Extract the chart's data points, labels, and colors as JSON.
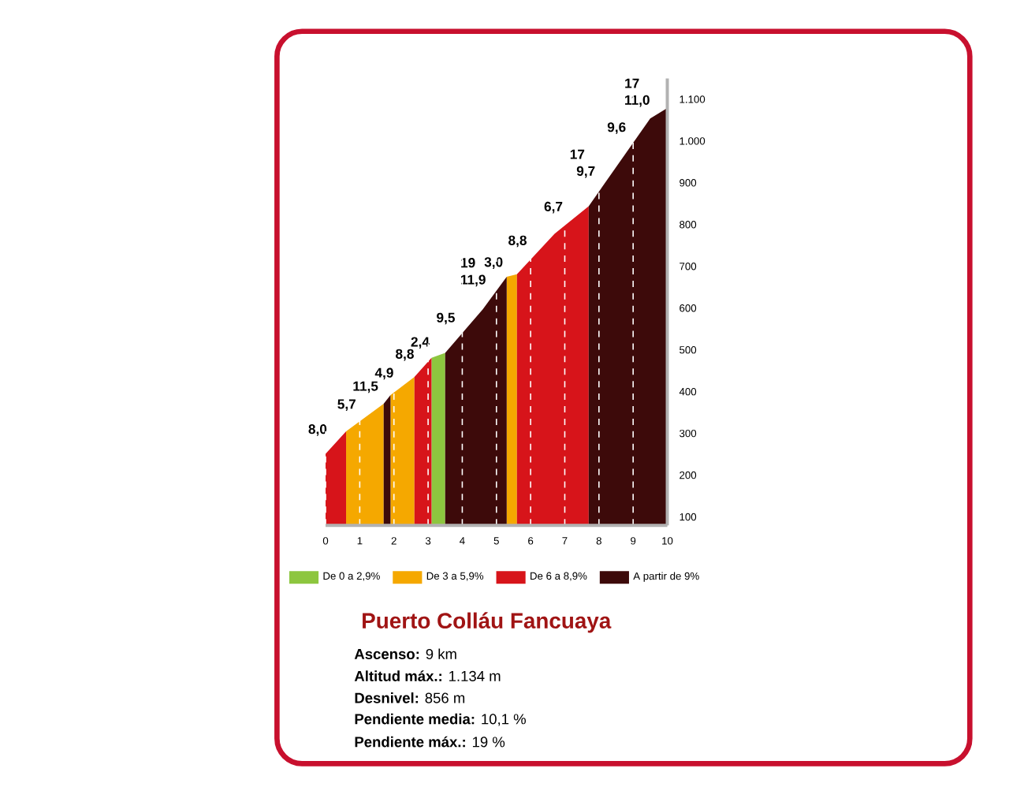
{
  "chart_data": {
    "type": "area",
    "title": "Puerto Colláu Fancuaya",
    "xlim": [
      0,
      10
    ],
    "xticks": [
      0,
      1,
      2,
      3,
      4,
      5,
      6,
      7,
      8,
      9,
      10
    ],
    "ylim": [
      80,
      1150
    ],
    "yticks": [
      100,
      200,
      300,
      400,
      500,
      600,
      700,
      800,
      900,
      {
        "value": 1000,
        "label": "1.000"
      },
      {
        "value": 1100,
        "label": "1.100"
      }
    ],
    "grid": "x",
    "legend": "bottom",
    "series": [
      {
        "name": "De 0 a 2,9%",
        "color": "#8dc63f",
        "x": [
          3.1,
          3.5
        ],
        "values": [
          481,
          493
        ]
      },
      {
        "name": "De 3 a 5,9%",
        "color": "#f5a800",
        "x": [
          0.6,
          1.7,
          null,
          1.9,
          2.6,
          null,
          5.3,
          5.6
        ],
        "values": [
          305,
          371,
          null,
          392,
          435,
          null,
          675,
          681
        ]
      },
      {
        "name": "De 6 a 8,9%",
        "color": "#d7141a",
        "x": [
          0,
          0.6,
          null,
          2.6,
          3.1,
          null,
          5.6,
          6.7,
          7.7
        ],
        "values": [
          251,
          305,
          null,
          435,
          481,
          null,
          681,
          778,
          844
        ]
      },
      {
        "name": "A partir de 9%",
        "color": "#3d0a0a",
        "x": [
          1.7,
          1.9,
          null,
          3.5,
          4.6,
          5.3,
          null,
          7.7,
          8.6,
          9.5,
          10
        ],
        "values": [
          371,
          392,
          null,
          493,
          597,
          675,
          null,
          844,
          949,
          1054,
          1079
        ]
      }
    ],
    "annotations": [
      {
        "text": "8,0",
        "x": 0.3,
        "y": 278
      },
      {
        "text": "5,7",
        "x": 1.15,
        "y": 338
      },
      {
        "text": "11,5",
        "x": 1.8,
        "y": 381
      },
      {
        "text": "4,9",
        "x": 2.25,
        "y": 413
      },
      {
        "text": "8,8",
        "x": 2.85,
        "y": 458
      },
      {
        "text": "2,4",
        "x": 3.3,
        "y": 487
      },
      {
        "text": "9,5",
        "x": 4.05,
        "y": 545
      },
      {
        "text": "11,9",
        "x": 4.95,
        "y": 636
      },
      {
        "text": "3,0",
        "x": 5.45,
        "y": 678
      },
      {
        "text": "8,8",
        "x": 6.15,
        "y": 730
      },
      {
        "text": "6,7",
        "x": 7.2,
        "y": 811
      },
      {
        "text": "9,7",
        "x": 8.15,
        "y": 896
      },
      {
        "text": "9,6",
        "x": 9.05,
        "y": 1001
      },
      {
        "text": "11,0",
        "x": 9.75,
        "y": 1066
      },
      {
        "text": "19",
        "x": 4.95,
        "y": 636
      },
      {
        "text": "17",
        "x": 8.15,
        "y": 896
      },
      {
        "text": "17",
        "x": 9.75,
        "y": 1066
      },
      "**Ascenso:** 9 km",
      "**Altitud máx.:** 1.134 m",
      "**Desnivel:** 856 m",
      "**Pendiente media:** 10,1 %",
      "**Pendiente máx.:** 19 %"
    ]
  }
}
